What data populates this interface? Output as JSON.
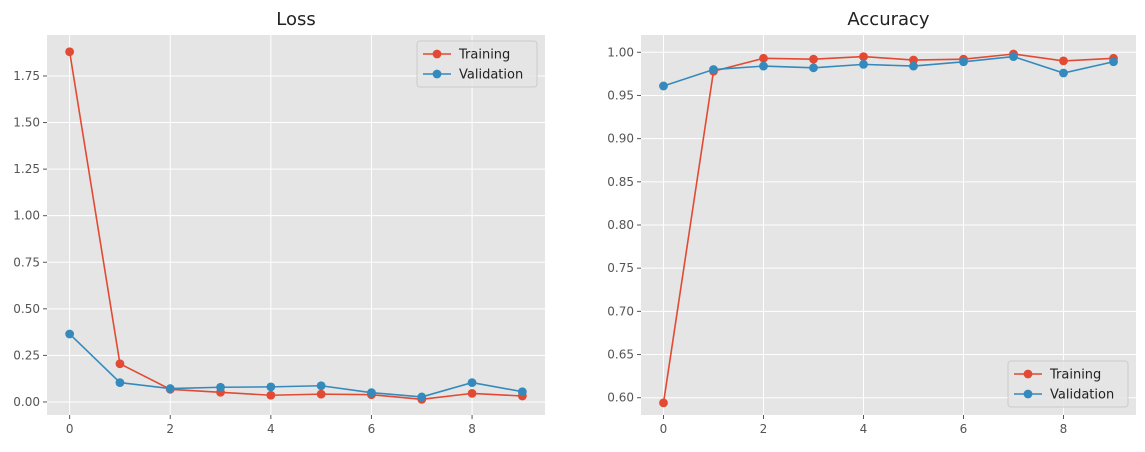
{
  "chart_data": [
    {
      "type": "line",
      "title": "Loss",
      "xlabel": "",
      "ylabel": "",
      "x": [
        0,
        1,
        2,
        3,
        4,
        5,
        6,
        7,
        8,
        9
      ],
      "xlim": [
        -0.45,
        9.45
      ],
      "ylim": [
        -0.07,
        1.97
      ],
      "xticks": [
        0,
        2,
        4,
        6,
        8
      ],
      "yticks": [
        0.0,
        0.25,
        0.5,
        0.75,
        1.0,
        1.25,
        1.5,
        1.75
      ],
      "ytick_labels": [
        "0.00",
        "0.25",
        "0.50",
        "0.75",
        "1.00",
        "1.25",
        "1.50",
        "1.75"
      ],
      "grid": true,
      "legend": "top-right",
      "series": [
        {
          "name": "Training",
          "color": "#E24A33",
          "values": [
            1.88,
            0.205,
            0.068,
            0.052,
            0.036,
            0.042,
            0.039,
            0.014,
            0.046,
            0.032
          ]
        },
        {
          "name": "Validation",
          "color": "#348ABD",
          "values": [
            0.365,
            0.104,
            0.072,
            0.079,
            0.081,
            0.087,
            0.05,
            0.027,
            0.104,
            0.055
          ]
        }
      ]
    },
    {
      "type": "line",
      "title": "Accuracy",
      "xlabel": "",
      "ylabel": "",
      "x": [
        0,
        1,
        2,
        3,
        4,
        5,
        6,
        7,
        8,
        9
      ],
      "xlim": [
        -0.45,
        9.45
      ],
      "ylim": [
        0.58,
        1.02
      ],
      "xticks": [
        0,
        2,
        4,
        6,
        8
      ],
      "yticks": [
        0.6,
        0.65,
        0.7,
        0.75,
        0.8,
        0.85,
        0.9,
        0.95,
        1.0
      ],
      "ytick_labels": [
        "0.60",
        "0.65",
        "0.70",
        "0.75",
        "0.80",
        "0.85",
        "0.90",
        "0.95",
        "1.00"
      ],
      "grid": true,
      "legend": "bottom-right",
      "series": [
        {
          "name": "Training",
          "color": "#E24A33",
          "values": [
            0.594,
            0.978,
            0.993,
            0.992,
            0.995,
            0.991,
            0.992,
            0.998,
            0.99,
            0.993
          ]
        },
        {
          "name": "Validation",
          "color": "#348ABD",
          "values": [
            0.961,
            0.98,
            0.984,
            0.982,
            0.986,
            0.984,
            0.989,
            0.995,
            0.976,
            0.989
          ]
        }
      ]
    }
  ]
}
